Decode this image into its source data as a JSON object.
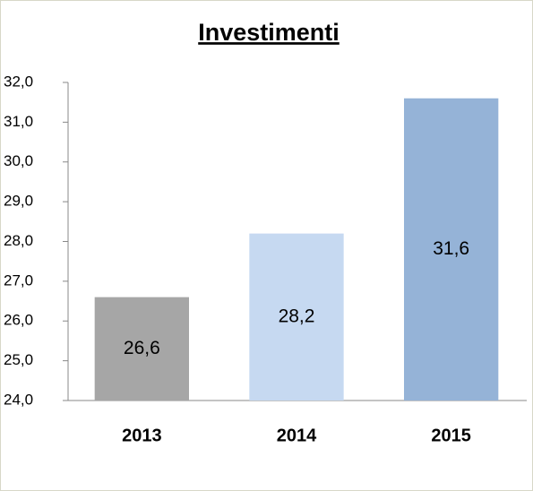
{
  "chart_data": {
    "type": "bar",
    "title": "Investimenti",
    "categories": [
      "2013",
      "2014",
      "2015"
    ],
    "values": [
      26.6,
      28.2,
      31.6
    ],
    "value_labels": [
      "26,6",
      "28,2",
      "31,6"
    ],
    "colors": [
      "#a6a6a6",
      "#c6d9f1",
      "#95b3d7"
    ],
    "ylim": [
      24,
      32
    ],
    "yticks": [
      {
        "value": 24,
        "label": "24,0"
      },
      {
        "value": 25,
        "label": "25,0"
      },
      {
        "value": 26,
        "label": "26,0"
      },
      {
        "value": 27,
        "label": "27,0"
      },
      {
        "value": 28,
        "label": "28,0"
      },
      {
        "value": 29,
        "label": "29,0"
      },
      {
        "value": 30,
        "label": "30,0"
      },
      {
        "value": 31,
        "label": "31,0"
      },
      {
        "value": 32,
        "label": "32,0"
      }
    ],
    "grid": false
  }
}
